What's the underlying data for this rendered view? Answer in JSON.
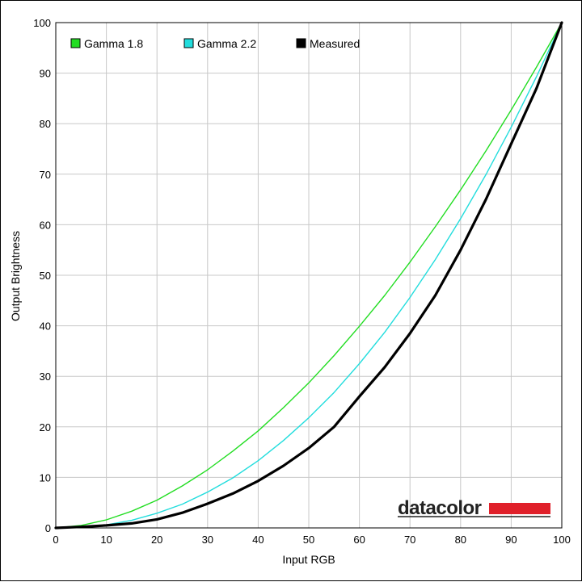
{
  "chart_data": {
    "type": "line",
    "xlabel": "Input RGB",
    "ylabel": "Output Brightness",
    "xlim": [
      0,
      100
    ],
    "ylim": [
      0,
      100
    ],
    "x_ticks": [
      0,
      10,
      20,
      30,
      40,
      50,
      60,
      70,
      80,
      90,
      100
    ],
    "y_ticks": [
      0,
      10,
      20,
      30,
      40,
      50,
      60,
      70,
      80,
      90,
      100
    ],
    "grid": true,
    "legend_position": "top-left",
    "x": [
      0,
      5,
      10,
      15,
      20,
      25,
      30,
      35,
      40,
      45,
      50,
      55,
      60,
      65,
      70,
      75,
      80,
      85,
      90,
      95,
      100
    ],
    "series": [
      {
        "name": "Gamma 1.8",
        "color": "#22dd22",
        "values": [
          0,
          0.5,
          1.6,
          3.3,
          5.5,
          8.3,
          11.5,
          15.2,
          19.2,
          23.8,
          28.7,
          34.1,
          39.9,
          46.0,
          52.6,
          59.6,
          66.9,
          74.6,
          82.7,
          91.2,
          100
        ]
      },
      {
        "name": "Gamma 2.2",
        "color": "#22dddd",
        "values": [
          0,
          0.1,
          0.6,
          1.5,
          2.9,
          4.7,
          7.1,
          9.9,
          13.3,
          17.3,
          21.8,
          26.8,
          32.5,
          38.7,
          45.6,
          53.1,
          61.2,
          69.9,
          79.3,
          89.3,
          100
        ]
      },
      {
        "name": "Measured",
        "color": "#000000",
        "values": [
          0,
          0.2,
          0.5,
          0.9,
          1.7,
          3.0,
          4.8,
          6.8,
          9.3,
          12.3,
          15.8,
          20.0,
          26.0,
          31.8,
          38.5,
          46.0,
          55.0,
          65.0,
          76.0,
          87.0,
          100
        ]
      }
    ]
  },
  "brand": {
    "text": "datacolor",
    "bar_color": "#e0202a"
  }
}
